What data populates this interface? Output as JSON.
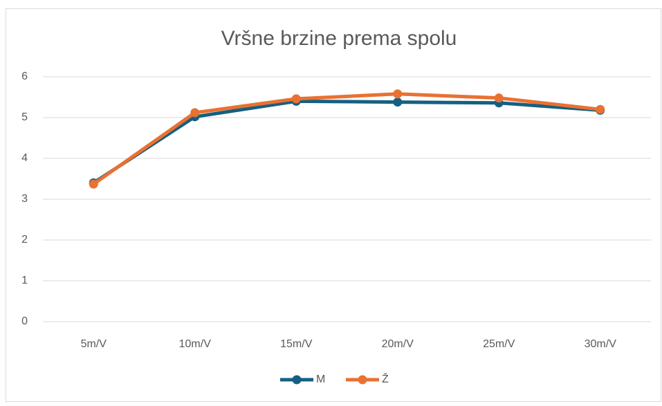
{
  "chart_data": {
    "type": "line",
    "title": "Vršne brzine prema spolu",
    "categories": [
      "5m/V",
      "10m/V",
      "15m/V",
      "20m/V",
      "25m/V",
      "30m/V"
    ],
    "series": [
      {
        "name": "M",
        "color": "#156082",
        "values": [
          3.4,
          5.02,
          5.4,
          5.38,
          5.36,
          5.18
        ]
      },
      {
        "name": "Ž",
        "color": "#e97132",
        "values": [
          3.37,
          5.12,
          5.46,
          5.58,
          5.48,
          5.2
        ]
      }
    ],
    "ylim": [
      0,
      6
    ],
    "yticks": [
      0,
      1,
      2,
      3,
      4,
      5,
      6
    ],
    "grid": true,
    "legend": "bottom"
  }
}
